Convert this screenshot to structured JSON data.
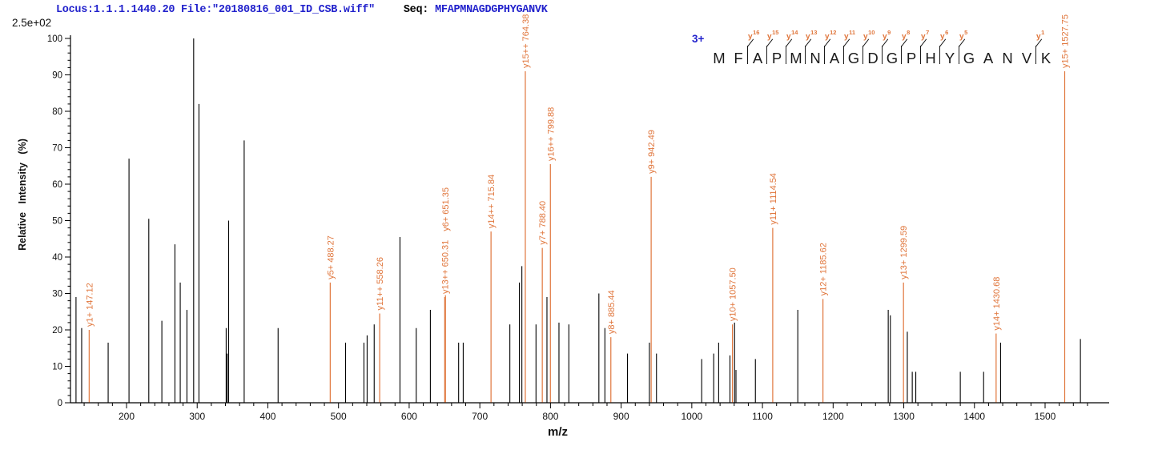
{
  "header": {
    "locus_file": "Locus:1.1.1.1440.20 File:\"20180816_001_ID_CSB.wiff\"",
    "seq_prefix": "Seq:",
    "sequence": "MFAPMNAGDGPHYGANVK"
  },
  "colors": {
    "header_blue": "#2222cc",
    "annotation_orange": "#e0763c",
    "peak_black": "#000000"
  },
  "peptide": {
    "charge": "3+",
    "residues": [
      "M",
      "F",
      "A",
      "P",
      "M",
      "N",
      "A",
      "G",
      "D",
      "G",
      "P",
      "H",
      "Y",
      "G",
      "A",
      "N",
      "V",
      "K"
    ],
    "y_ion_marks": [
      {
        "index": 2,
        "label": "y16"
      },
      {
        "index": 3,
        "label": "y15"
      },
      {
        "index": 4,
        "label": "y14"
      },
      {
        "index": 5,
        "label": "y13"
      },
      {
        "index": 6,
        "label": "y12"
      },
      {
        "index": 7,
        "label": "y11"
      },
      {
        "index": 8,
        "label": "y10"
      },
      {
        "index": 9,
        "label": "y9"
      },
      {
        "index": 10,
        "label": "y8"
      },
      {
        "index": 11,
        "label": "y7"
      },
      {
        "index": 12,
        "label": "y6"
      },
      {
        "index": 13,
        "label": "y5"
      },
      {
        "index": 17,
        "label": "y1"
      }
    ]
  },
  "chart_data": {
    "type": "bar",
    "subtype": "ms2-stick-spectrum",
    "title": "",
    "xlabel": "m/z",
    "ylabel": "Relative Intensity (%)",
    "intensity_scale_label": "2.5e+02",
    "xlim": [
      121,
      1590
    ],
    "ylim": [
      0,
      100
    ],
    "grid": false,
    "x_major_ticks": [
      200,
      300,
      400,
      500,
      600,
      700,
      800,
      900,
      1000,
      1100,
      1200,
      1300,
      1400,
      1500
    ],
    "x_minor_tick_step": 20,
    "y_major_tick_step": 10,
    "y_minor_tick_step": 2,
    "annotated_peaks": [
      {
        "ion": "y1+",
        "mz": 147.12,
        "mz_label": "147.12",
        "intensity": 20
      },
      {
        "ion": "y5+",
        "mz": 488.27,
        "mz_label": "488.27",
        "intensity": 33
      },
      {
        "ion": "y11++",
        "mz": 558.26,
        "mz_label": "558.26",
        "intensity": 24.5
      },
      {
        "ion": "y13++",
        "mz": 650.31,
        "mz_label": "650.31",
        "intensity": 29
      },
      {
        "ion": "y6+",
        "mz": 651.35,
        "mz_label": "651.35",
        "intensity": 29.5,
        "label_offset": 76
      },
      {
        "ion": "y14++",
        "mz": 715.84,
        "mz_label": "715.84",
        "intensity": 47
      },
      {
        "ion": "y15++",
        "mz": 764.38,
        "mz_label": "764.38",
        "intensity": 91
      },
      {
        "ion": "y7+",
        "mz": 788.4,
        "mz_label": "788.40",
        "intensity": 42.5
      },
      {
        "ion": "y16++",
        "mz": 799.88,
        "mz_label": "799.88",
        "intensity": 65.5
      },
      {
        "ion": "y8+",
        "mz": 885.44,
        "mz_label": "885.44",
        "intensity": 18
      },
      {
        "ion": "y9+",
        "mz": 942.49,
        "mz_label": "942.49",
        "intensity": 62
      },
      {
        "ion": "y10+",
        "mz": 1057.5,
        "mz_label": "1057.50",
        "intensity": 21.5
      },
      {
        "ion": "y11+",
        "mz": 1114.54,
        "mz_label": "1114.54",
        "intensity": 48
      },
      {
        "ion": "y12+",
        "mz": 1185.62,
        "mz_label": "1185.62",
        "intensity": 28.5
      },
      {
        "ion": "y13+",
        "mz": 1299.59,
        "mz_label": "1299.59",
        "intensity": 33
      },
      {
        "ion": "y14+",
        "mz": 1430.68,
        "mz_label": "1430.68",
        "intensity": 19
      },
      {
        "ion": "y15+",
        "mz": 1527.75,
        "mz_label": "1527.75",
        "intensity": 91
      }
    ],
    "peaks": [
      [
        128.5,
        29
      ],
      [
        136.5,
        20.5
      ],
      [
        174,
        16.5
      ],
      [
        203.5,
        67
      ],
      [
        231.5,
        50.5
      ],
      [
        250,
        22.5
      ],
      [
        268.5,
        43.5
      ],
      [
        276,
        33
      ],
      [
        285.5,
        25.5
      ],
      [
        295,
        100
      ],
      [
        302.5,
        82
      ],
      [
        341,
        20.5
      ],
      [
        342.5,
        13.5
      ],
      [
        344.5,
        50
      ],
      [
        366.5,
        72
      ],
      [
        414.5,
        20.5
      ],
      [
        510,
        16.5
      ],
      [
        536,
        16.5
      ],
      [
        540.5,
        18.5
      ],
      [
        550.5,
        21.5
      ],
      [
        587,
        45.5
      ],
      [
        610,
        20.5
      ],
      [
        630,
        25.5
      ],
      [
        670,
        16.5
      ],
      [
        676.5,
        16.5
      ],
      [
        742.5,
        21.5
      ],
      [
        756,
        33
      ],
      [
        759.5,
        37.5
      ],
      [
        779.5,
        21.5
      ],
      [
        795,
        29
      ],
      [
        812,
        22
      ],
      [
        826,
        21.5
      ],
      [
        868.5,
        30
      ],
      [
        877,
        20.5
      ],
      [
        909,
        13.5
      ],
      [
        940,
        16.5
      ],
      [
        950,
        13.5
      ],
      [
        1014,
        12
      ],
      [
        1031,
        13.5
      ],
      [
        1038,
        16.5
      ],
      [
        1054,
        13
      ],
      [
        1060.5,
        22
      ],
      [
        1062.5,
        9
      ],
      [
        1090,
        12
      ],
      [
        1150,
        25.5
      ],
      [
        1278,
        25.5
      ],
      [
        1281,
        24
      ],
      [
        1305,
        19.5
      ],
      [
        1312,
        8.5
      ],
      [
        1317,
        8.5
      ],
      [
        1380,
        8.5
      ],
      [
        1413,
        8.5
      ],
      [
        1437,
        16.5
      ],
      [
        1550,
        17.5
      ]
    ]
  }
}
